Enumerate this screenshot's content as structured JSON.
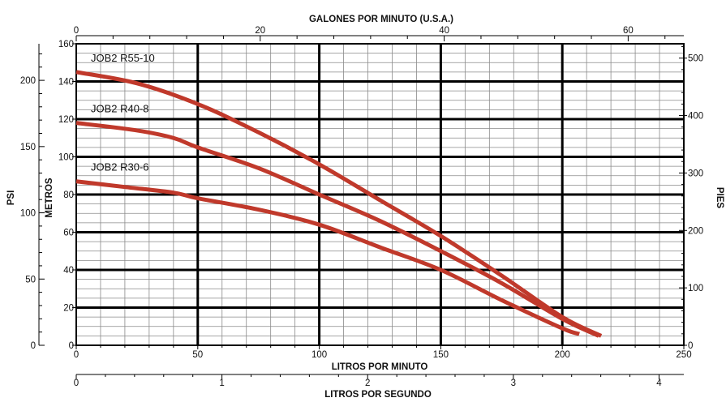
{
  "chart_data": {
    "type": "line",
    "title": "",
    "top_axis": {
      "label": "GALONES POR MINUTO (U.S.A.)",
      "ticks": [
        0,
        20,
        40,
        60
      ],
      "range": [
        0,
        66.05
      ]
    },
    "bottom_axis": {
      "label": "LITROS POR MINUTO",
      "ticks": [
        0,
        50,
        100,
        150,
        200,
        250
      ],
      "range": [
        0,
        250
      ]
    },
    "secondary_bottom_axis": {
      "label": "LITROS POR SEGUNDO",
      "ticks": [
        0,
        1,
        2,
        3,
        4
      ],
      "range": [
        0,
        4.17
      ]
    },
    "left_axis_meters": {
      "label": "METROS",
      "ticks": [
        0,
        20,
        40,
        60,
        80,
        100,
        120,
        140,
        160
      ],
      "range": [
        0,
        160
      ]
    },
    "left_axis_psi": {
      "label": "PSI",
      "ticks": [
        0,
        50,
        100,
        150,
        200
      ],
      "range": [
        0,
        227.6
      ]
    },
    "right_axis_feet": {
      "label": "PIES",
      "ticks": [
        0,
        100,
        200,
        300,
        400,
        500
      ],
      "range": [
        0,
        525
      ]
    },
    "grid": true,
    "series_color": "#c0392b",
    "series": [
      {
        "name": "JOB2 R55-10",
        "x": [
          0,
          25,
          50,
          75,
          100,
          125,
          150,
          175,
          200,
          216
        ],
        "y": [
          145,
          139,
          128,
          113,
          96,
          77,
          58,
          37,
          15,
          5
        ]
      },
      {
        "name": "JOB2 R40-8",
        "x": [
          0,
          25,
          40,
          50,
          75,
          100,
          125,
          150,
          175,
          200,
          215
        ],
        "y": [
          118,
          114,
          110,
          105,
          94,
          80,
          66,
          50,
          33,
          14,
          5
        ]
      },
      {
        "name": "JOB2 R30-6",
        "x": [
          0,
          20,
          40,
          50,
          75,
          100,
          125,
          150,
          175,
          200,
          207
        ],
        "y": [
          87,
          84,
          81,
          78,
          72,
          64,
          52,
          40,
          24,
          9,
          6
        ]
      }
    ]
  }
}
